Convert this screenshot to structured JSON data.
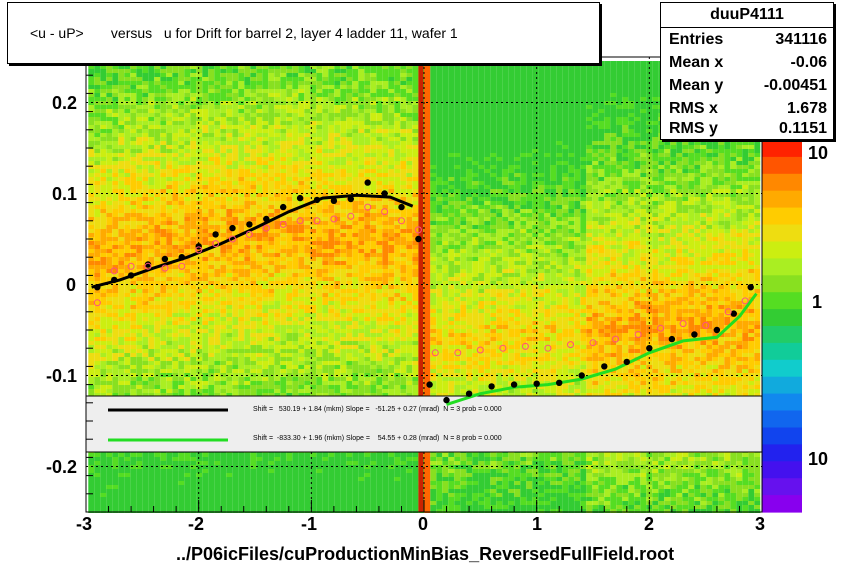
{
  "title": "<u - uP>       versus   u for Drift for barrel 2, layer 4 ladder 11, wafer 1",
  "stats": {
    "name": "duuP4111",
    "rows": [
      {
        "key": "Entries",
        "value": "341116"
      },
      {
        "key": "Mean x",
        "value": "-0.06"
      },
      {
        "key": "Mean y",
        "value": "-0.00451"
      },
      {
        "key": "RMS x",
        "value": "1.678"
      },
      {
        "key": "RMS y",
        "value": "0.1151"
      }
    ]
  },
  "x_title": "../P06icFiles/cuProductionMinBias_ReversedFullField.root",
  "legend": [
    {
      "text": "Shift =   530.19 + 1.84 (mkm) Slope =   -51.25 + 0.27 (mrad)  N = 3 prob = 0.000",
      "color": "#000000"
    },
    {
      "text": "Shift =  -833.30 + 1.96 (mkm) Slope =    54.55 + 0.28 (mrad)  N = 8 prob = 0.000",
      "color": "#22dd22"
    }
  ],
  "colors": {
    "black_series": "#000000",
    "pink_series": "#ff5080",
    "green_fit": "#22dd22"
  },
  "chart_data": {
    "type": "heatmap",
    "title": "<u - uP>       versus   u for Drift for barrel 2, layer 4 ladder 11, wafer 1",
    "xlabel": "../P06icFiles/cuProductionMinBias_ReversedFullField.root",
    "ylabel": "",
    "xlim": [
      -3,
      3
    ],
    "ylim": [
      -0.25,
      0.25
    ],
    "x_ticks": [
      "-3",
      "-2",
      "-1",
      "0",
      "1",
      "2",
      "3"
    ],
    "y_ticks": [
      "0.2",
      "0.1",
      "0",
      "-0.1",
      "-0.2"
    ],
    "z_scale": "log",
    "z_tick_labels": [
      "10",
      "1",
      "10"
    ],
    "grid": true,
    "series": [
      {
        "name": "black profile",
        "style": "points",
        "x": [
          -2.9,
          -2.75,
          -2.6,
          -2.45,
          -2.3,
          -2.15,
          -2.0,
          -1.85,
          -1.7,
          -1.55,
          -1.4,
          -1.25,
          -1.1,
          -0.95,
          -0.8,
          -0.65,
          -0.5,
          -0.35,
          -0.2,
          -0.05,
          0.05,
          0.2,
          0.4,
          0.6,
          0.8,
          1.0,
          1.2,
          1.4,
          1.6,
          1.8,
          2.0,
          2.2,
          2.4,
          2.6,
          2.75,
          2.9
        ],
        "y": [
          -0.003,
          0.005,
          0.01,
          0.022,
          0.028,
          0.03,
          0.042,
          0.055,
          0.062,
          0.066,
          0.072,
          0.085,
          0.095,
          0.093,
          0.092,
          0.094,
          0.112,
          0.1,
          0.085,
          0.05,
          -0.11,
          -0.127,
          -0.12,
          -0.112,
          -0.11,
          -0.109,
          -0.108,
          -0.1,
          -0.09,
          -0.085,
          -0.07,
          -0.06,
          -0.055,
          -0.05,
          -0.032,
          -0.003
        ]
      },
      {
        "name": "pink profile",
        "style": "open-circles",
        "x": [
          -2.9,
          -2.75,
          -2.6,
          -2.45,
          -2.3,
          -2.15,
          -2.0,
          -1.85,
          -1.7,
          -1.55,
          -1.4,
          -1.25,
          -1.1,
          -0.95,
          -0.8,
          -0.65,
          -0.5,
          -0.35,
          -0.2,
          -0.05,
          0.1,
          0.3,
          0.5,
          0.7,
          0.9,
          1.1,
          1.3,
          1.5,
          1.7,
          1.9,
          2.1,
          2.3,
          2.5,
          2.7,
          2.85
        ],
        "y": [
          -0.02,
          0.015,
          0.02,
          0.02,
          0.018,
          0.02,
          0.038,
          0.045,
          0.05,
          0.055,
          0.062,
          0.066,
          0.07,
          0.07,
          0.072,
          0.075,
          0.085,
          0.08,
          0.07,
          0.06,
          -0.075,
          -0.075,
          -0.072,
          -0.07,
          -0.068,
          -0.07,
          -0.066,
          -0.064,
          -0.06,
          -0.055,
          -0.048,
          -0.043,
          -0.045,
          -0.03,
          -0.018
        ]
      },
      {
        "name": "black fit",
        "style": "line",
        "x": [
          -2.95,
          -2.7,
          -2.4,
          -2.1,
          -1.8,
          -1.5,
          -1.2,
          -0.9,
          -0.6,
          -0.3,
          -0.1
        ],
        "y": [
          -0.003,
          0.005,
          0.018,
          0.03,
          0.045,
          0.062,
          0.08,
          0.095,
          0.098,
          0.096,
          0.086
        ]
      },
      {
        "name": "green fit",
        "style": "line",
        "x": [
          0.2,
          0.5,
          0.8,
          1.1,
          1.4,
          1.7,
          2.0,
          2.3,
          2.6,
          2.8,
          2.95
        ],
        "y": [
          -0.132,
          -0.12,
          -0.113,
          -0.11,
          -0.104,
          -0.093,
          -0.075,
          -0.062,
          -0.058,
          -0.035,
          -0.01
        ]
      }
    ]
  }
}
